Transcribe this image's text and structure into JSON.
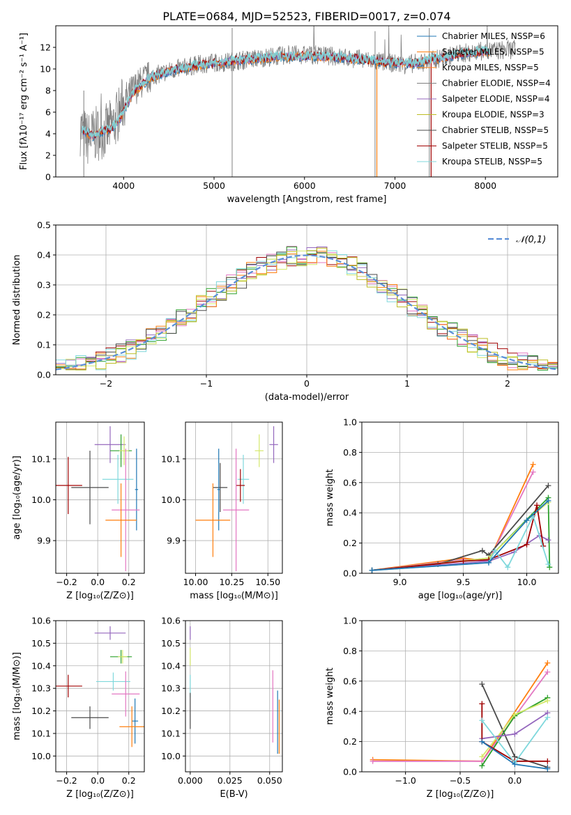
{
  "title": "PLATE=0684, MJD=52523, FIBERID=0017, z=0.074",
  "colors": {
    "blue": "#1f77b4",
    "orange": "#ff7f0e",
    "gray": "#7f7f7f",
    "purple": "#9467bd",
    "yellow": "#bcbd22",
    "black": "#4a4a4a",
    "red": "#a00000",
    "cyan": "#7fd8dc",
    "pink": "#e377c2",
    "lime": "#d4e86a",
    "green": "#2ca02c",
    "dashed": "#5b8fd8"
  },
  "chart_data": [
    {
      "id": "spectrum",
      "type": "line",
      "xlabel": "wavelength [Angstrom, rest frame]",
      "ylabel": "Flux [fλ10⁻¹⁷ erg cm⁻² s⁻¹ A⁻¹]",
      "xlim": [
        3250,
        8800
      ],
      "ylim": [
        0,
        14
      ],
      "xticks": [
        "4000",
        "5000",
        "6000",
        "7000",
        "8000"
      ],
      "yticks": [
        "0",
        "2",
        "4",
        "6",
        "8",
        "10",
        "12"
      ],
      "legend_position": "top-right",
      "legend": [
        "Chabrier MILES, NSSP=6",
        "Salpeter MILES, NSSP=5",
        "Kroupa MILES, NSSP=5",
        "Chabrier ELODIE, NSSP=4",
        "Salpeter ELODIE, NSSP=4",
        "Kroupa ELODIE, NSSP=3",
        "Chabrier STELIB, NSSP=5",
        "Salpeter STELIB, NSSP=5",
        "Kroupa STELIB, NSSP=5"
      ],
      "data_x": [
        3520,
        3600,
        3700,
        3800,
        3900,
        4000,
        4100,
        4200,
        4300,
        4500,
        4700,
        4900,
        5100,
        5300,
        5500,
        5700,
        5900,
        6100,
        6300,
        6500,
        6700,
        6900,
        7100,
        7300,
        7500,
        7700,
        7900,
        8100,
        8300
      ],
      "data_y": [
        4.5,
        3.5,
        4.0,
        4.2,
        5.0,
        7.0,
        8.0,
        8.8,
        9.3,
        9.8,
        10.2,
        10.5,
        10.6,
        10.8,
        11.0,
        11.2,
        11.3,
        11.3,
        11.2,
        11.0,
        10.8,
        10.6,
        10.4,
        10.6,
        11.0,
        11.4,
        11.6,
        11.7,
        11.8
      ],
      "model_x": [
        3550,
        3650,
        3750,
        3850,
        3950,
        4100,
        4300,
        4500,
        4800,
        5100,
        5400,
        5700,
        6000,
        6300,
        6600,
        6900,
        7200,
        7500,
        7800,
        8000
      ],
      "model_y": [
        4.3,
        3.8,
        4.2,
        4.4,
        5.2,
        7.8,
        9.2,
        9.8,
        10.3,
        10.6,
        10.9,
        11.1,
        11.2,
        11.1,
        10.9,
        10.6,
        10.5,
        11.0,
        11.5,
        11.6
      ]
    },
    {
      "id": "residuals",
      "type": "line",
      "xlabel": "(data-model)/error",
      "ylabel": "Normed distribution",
      "xlim": [
        -2.5,
        2.5
      ],
      "ylim": [
        0,
        0.5
      ],
      "xticks": [
        "−2",
        "−1",
        "0",
        "1",
        "2"
      ],
      "yticks": [
        "0.0",
        "0.1",
        "0.2",
        "0.3",
        "0.4",
        "0.5"
      ],
      "legend": [
        "𝒩(0,1)"
      ],
      "legend_position": "top-right",
      "hist_edges": [
        -2.5,
        -2.4,
        -2.3,
        -2.2,
        -2.1,
        -2.0,
        -1.9,
        -1.8,
        -1.7,
        -1.6,
        -1.5,
        -1.4,
        -1.3,
        -1.2,
        -1.1,
        -1.0,
        -0.9,
        -0.8,
        -0.7,
        -0.6,
        -0.5,
        -0.4,
        -0.3,
        -0.2,
        -0.1,
        0.0,
        0.1,
        0.2,
        0.3,
        0.4,
        0.5,
        0.6,
        0.7,
        0.8,
        0.9,
        1.0,
        1.1,
        1.2,
        1.3,
        1.4,
        1.5,
        1.6,
        1.7,
        1.8,
        1.9,
        2.0,
        2.1,
        2.2,
        2.3,
        2.4,
        2.5
      ]
    },
    {
      "id": "age-vs-Z",
      "type": "scatter",
      "xlabel": "Z [log₁₀(Z/Z⊙)]",
      "ylabel": "age  [log₁₀(age/yr)]",
      "xlim": [
        -0.27,
        0.3
      ],
      "ylim": [
        9.82,
        10.19
      ],
      "xticks": [
        "−0.2",
        "0.0",
        "0.2"
      ],
      "yticks": [
        "9.9",
        "10.0",
        "10.1"
      ],
      "points": [
        {
          "x": 0.08,
          "y": 10.135,
          "xerr": 0.1,
          "yerr": 0.045,
          "color": "purple"
        },
        {
          "x": 0.15,
          "y": 10.12,
          "xerr": 0.07,
          "yerr": 0.04,
          "color": "green"
        },
        {
          "x": 0.17,
          "y": 10.12,
          "xerr": 0.03,
          "yerr": 0.035,
          "color": "lime"
        },
        {
          "x": 0.13,
          "y": 10.05,
          "xerr": 0.1,
          "yerr": 0.06,
          "color": "cyan"
        },
        {
          "x": -0.19,
          "y": 10.035,
          "xerr": 0.09,
          "yerr": 0.07,
          "color": "red"
        },
        {
          "x": -0.05,
          "y": 10.03,
          "xerr": 0.12,
          "yerr": 0.09,
          "color": "black"
        },
        {
          "x": 0.25,
          "y": 10.025,
          "xerr": 0.01,
          "yerr": 0.1,
          "color": "blue"
        },
        {
          "x": 0.18,
          "y": 9.975,
          "xerr": 0.09,
          "yerr": 0.15,
          "color": "pink"
        },
        {
          "x": 0.15,
          "y": 9.95,
          "xerr": 0.1,
          "yerr": 0.09,
          "color": "orange"
        }
      ]
    },
    {
      "id": "age-vs-mass",
      "type": "scatter",
      "xlabel": "mass [log₁₀(M/M⊙)]",
      "ylabel": "",
      "xlim": [
        9.93,
        10.6
      ],
      "ylim": [
        9.82,
        10.19
      ],
      "xticks": [
        "10.00",
        "10.25",
        "10.50"
      ],
      "yticks": [
        "9.9",
        "10.0",
        "10.1"
      ],
      "points": [
        {
          "x": 10.54,
          "y": 10.135,
          "xerr": 0.03,
          "yerr": 0.045,
          "color": "purple"
        },
        {
          "x": 10.44,
          "y": 10.12,
          "xerr": 0.03,
          "yerr": 0.04,
          "color": "lime"
        },
        {
          "x": 10.33,
          "y": 10.05,
          "xerr": 0.04,
          "yerr": 0.06,
          "color": "cyan"
        },
        {
          "x": 10.31,
          "y": 10.035,
          "xerr": 0.03,
          "yerr": 0.04,
          "color": "red"
        },
        {
          "x": 10.17,
          "y": 10.03,
          "xerr": 0.05,
          "yerr": 0.06,
          "color": "black"
        },
        {
          "x": 10.16,
          "y": 10.025,
          "xerr": 0.01,
          "yerr": 0.1,
          "color": "blue"
        },
        {
          "x": 10.28,
          "y": 9.975,
          "xerr": 0.09,
          "yerr": 0.15,
          "color": "pink"
        },
        {
          "x": 10.12,
          "y": 9.95,
          "xerr": 0.12,
          "yerr": 0.09,
          "color": "orange"
        }
      ]
    },
    {
      "id": "mass-weight-vs-age",
      "type": "line",
      "xlabel": "age  [log₁₀(age/yr)]",
      "ylabel": "mass weight",
      "xlim": [
        8.7,
        10.25
      ],
      "ylim": [
        0,
        1.0
      ],
      "xticks": [
        "9.0",
        "9.5",
        "10.0"
      ],
      "yticks": [
        "0.0",
        "0.2",
        "0.4",
        "0.6",
        "0.8",
        "1.0"
      ],
      "series": [
        {
          "color": "orange",
          "x": [
            8.78,
            9.5,
            9.7,
            10.05
          ],
          "y": [
            0.02,
            0.1,
            0.08,
            0.72
          ]
        },
        {
          "color": "pink",
          "x": [
            8.78,
            9.5,
            9.7,
            10.05
          ],
          "y": [
            0.02,
            0.09,
            0.08,
            0.67
          ]
        },
        {
          "color": "black",
          "x": [
            8.78,
            9.3,
            9.65,
            9.7,
            10.17
          ],
          "y": [
            0.02,
            0.06,
            0.15,
            0.12,
            0.58
          ]
        },
        {
          "color": "green",
          "x": [
            8.78,
            9.7,
            10.17,
            10.18
          ],
          "y": [
            0.02,
            0.1,
            0.5,
            0.04
          ]
        },
        {
          "color": "lime",
          "x": [
            8.78,
            9.7,
            10.0,
            10.17
          ],
          "y": [
            0.02,
            0.1,
            0.35,
            0.47
          ]
        },
        {
          "color": "purple",
          "x": [
            8.78,
            9.7,
            9.9,
            10.1,
            10.17
          ],
          "y": [
            0.02,
            0.08,
            0.14,
            0.25,
            0.22
          ]
        },
        {
          "color": "red",
          "x": [
            8.78,
            9.5,
            9.7,
            10.0,
            10.08,
            10.13
          ],
          "y": [
            0.02,
            0.08,
            0.09,
            0.19,
            0.45,
            0.18
          ]
        },
        {
          "color": "cyan",
          "x": [
            8.78,
            9.7,
            9.75,
            9.85,
            10.05,
            10.17
          ],
          "y": [
            0.02,
            0.07,
            0.15,
            0.04,
            0.38,
            0.06
          ]
        },
        {
          "color": "blue",
          "x": [
            8.78,
            9.7,
            10.0,
            10.17
          ],
          "y": [
            0.02,
            0.07,
            0.35,
            0.48
          ]
        }
      ]
    },
    {
      "id": "mass-vs-Z",
      "type": "scatter",
      "xlabel": "Z [log₁₀(Z/Z⊙)]",
      "ylabel": "mass [log₁₀(M/M⊙)]",
      "xlim": [
        -0.27,
        0.3
      ],
      "ylim": [
        9.93,
        10.6
      ],
      "xticks": [
        "−0.2",
        "0.0",
        "0.2"
      ],
      "yticks": [
        "10.0",
        "10.1",
        "10.2",
        "10.3",
        "10.4",
        "10.5",
        "10.6"
      ],
      "points": [
        {
          "x": 0.08,
          "y": 10.545,
          "xerr": 0.1,
          "yerr": 0.03,
          "color": "purple"
        },
        {
          "x": 0.15,
          "y": 10.44,
          "xerr": 0.07,
          "yerr": 0.03,
          "color": "green"
        },
        {
          "x": 0.16,
          "y": 10.44,
          "xerr": 0.03,
          "yerr": 0.03,
          "color": "lime"
        },
        {
          "x": 0.1,
          "y": 10.33,
          "xerr": 0.11,
          "yerr": 0.04,
          "color": "cyan"
        },
        {
          "x": -0.19,
          "y": 10.31,
          "xerr": 0.09,
          "yerr": 0.05,
          "color": "red"
        },
        {
          "x": -0.05,
          "y": 10.17,
          "xerr": 0.12,
          "yerr": 0.05,
          "color": "black"
        },
        {
          "x": 0.24,
          "y": 10.155,
          "xerr": 0.02,
          "yerr": 0.1,
          "color": "blue"
        },
        {
          "x": 0.18,
          "y": 10.275,
          "xerr": 0.09,
          "yerr": 0.1,
          "color": "pink"
        },
        {
          "x": 0.22,
          "y": 10.13,
          "xerr": 0.08,
          "yerr": 0.09,
          "color": "orange"
        }
      ]
    },
    {
      "id": "mass-vs-EBV",
      "type": "scatter",
      "xlabel": "E(B-V)",
      "ylabel": "",
      "xlim": [
        -0.003,
        0.058
      ],
      "ylim": [
        9.93,
        10.6
      ],
      "xticks": [
        "0.000",
        "0.025",
        "0.050"
      ],
      "yticks": [
        "10.0",
        "10.1",
        "10.2",
        "10.3",
        "10.4",
        "10.5",
        "10.6"
      ],
      "points": [
        {
          "x": 0.0,
          "y": 10.545,
          "xerr": 0,
          "yerr": 0.03,
          "color": "purple"
        },
        {
          "x": 0.0,
          "y": 10.44,
          "xerr": 0,
          "yerr": 0.04,
          "color": "lime"
        },
        {
          "x": 0.0,
          "y": 10.31,
          "xerr": 0,
          "yerr": 0.05,
          "color": "cyan"
        },
        {
          "x": 0.0,
          "y": 10.2,
          "xerr": 0,
          "yerr": 0.08,
          "color": "black"
        },
        {
          "x": 0.052,
          "y": 10.22,
          "xerr": 0,
          "yerr": 0.16,
          "color": "pink"
        },
        {
          "x": 0.055,
          "y": 10.15,
          "xerr": 0,
          "yerr": 0.14,
          "color": "blue"
        },
        {
          "x": 0.056,
          "y": 10.13,
          "xerr": 0,
          "yerr": 0.12,
          "color": "orange"
        }
      ]
    },
    {
      "id": "mass-weight-vs-Z",
      "type": "line",
      "xlabel": "Z [log₁₀(Z/Z⊙)]",
      "ylabel": "mass weight",
      "xlim": [
        -1.4,
        0.4
      ],
      "ylim": [
        0,
        1.0
      ],
      "xticks": [
        "−1.0",
        "−0.5",
        "0.0"
      ],
      "yticks": [
        "0.0",
        "0.2",
        "0.4",
        "0.6",
        "0.8",
        "1.0"
      ],
      "series": [
        {
          "color": "orange",
          "x": [
            -1.3,
            -0.3,
            0.3
          ],
          "y": [
            0.08,
            0.07,
            0.72
          ]
        },
        {
          "color": "pink",
          "x": [
            -1.3,
            -0.3,
            0.3
          ],
          "y": [
            0.07,
            0.07,
            0.66
          ]
        },
        {
          "color": "black",
          "x": [
            -0.3,
            0.0,
            0.3
          ],
          "y": [
            0.58,
            0.1,
            0.03
          ]
        },
        {
          "color": "green",
          "x": [
            -0.3,
            0.0,
            0.3
          ],
          "y": [
            0.04,
            0.37,
            0.49
          ]
        },
        {
          "color": "lime",
          "x": [
            -0.3,
            0.0,
            0.3
          ],
          "y": [
            0.1,
            0.38,
            0.47
          ]
        },
        {
          "color": "purple",
          "x": [
            -0.3,
            0.0,
            0.3
          ],
          "y": [
            0.22,
            0.25,
            0.39
          ]
        },
        {
          "color": "red",
          "x": [
            -0.3,
            -0.3,
            0.0,
            0.3
          ],
          "y": [
            0.45,
            0.2,
            0.07,
            0.07
          ]
        },
        {
          "color": "cyan",
          "x": [
            -0.3,
            0.0,
            0.3
          ],
          "y": [
            0.34,
            0.06,
            0.36
          ]
        },
        {
          "color": "blue",
          "x": [
            -0.3,
            0.0,
            0.3
          ],
          "y": [
            0.2,
            0.05,
            0.02
          ]
        }
      ]
    }
  ]
}
